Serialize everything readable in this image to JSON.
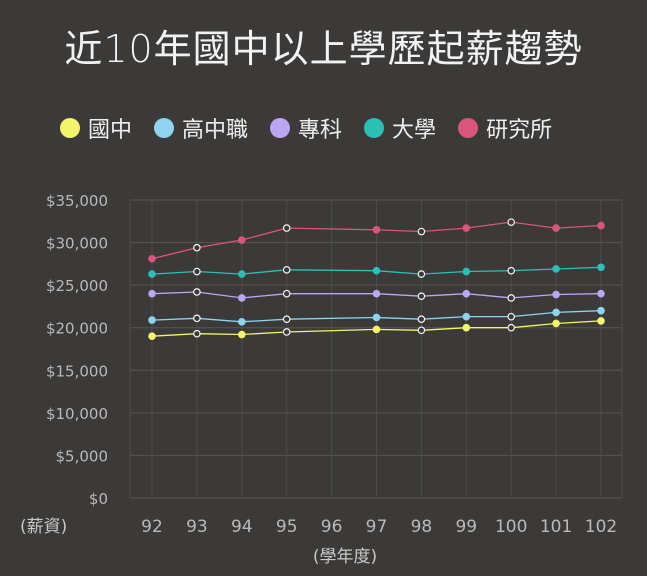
{
  "chart_data": {
    "type": "line",
    "title": "近10年國中以上學歷起薪趨勢",
    "x": [
      "92",
      "93",
      "94",
      "95",
      "96",
      "97",
      "98",
      "99",
      "100",
      "101",
      "102"
    ],
    "xlabel": "(學年度)",
    "ylabel": "(薪資)",
    "ylim": [
      0,
      35000
    ],
    "yticks": [
      0,
      5000,
      10000,
      15000,
      20000,
      25000,
      30000,
      35000
    ],
    "ytick_labels": [
      "$0",
      "$5,000",
      "$10,000",
      "$15,000",
      "$20,000",
      "$25,000",
      "$30,000",
      "$35,000"
    ],
    "grid": true,
    "legend_position": "top",
    "series": [
      {
        "name": "國中",
        "color": "#f2f56b",
        "values": [
          19000,
          19300,
          19200,
          19500,
          null,
          19800,
          19700,
          20000,
          20000,
          20500,
          20800
        ]
      },
      {
        "name": "高中職",
        "color": "#8fd3f0",
        "values": [
          20900,
          21100,
          20700,
          21000,
          null,
          21200,
          21000,
          21300,
          21300,
          21800,
          22000
        ]
      },
      {
        "name": "專科",
        "color": "#bba6f2",
        "values": [
          24000,
          24200,
          23500,
          24000,
          null,
          24000,
          23700,
          24000,
          23500,
          23900,
          24000
        ]
      },
      {
        "name": "大學",
        "color": "#2bbfb6",
        "values": [
          26300,
          26600,
          26300,
          26800,
          null,
          26700,
          26300,
          26600,
          26700,
          26900,
          27100
        ]
      },
      {
        "name": "研究所",
        "color": "#d9567a",
        "values": [
          28100,
          29400,
          30300,
          31700,
          null,
          31500,
          31300,
          31700,
          32400,
          31700,
          32000
        ]
      }
    ]
  }
}
